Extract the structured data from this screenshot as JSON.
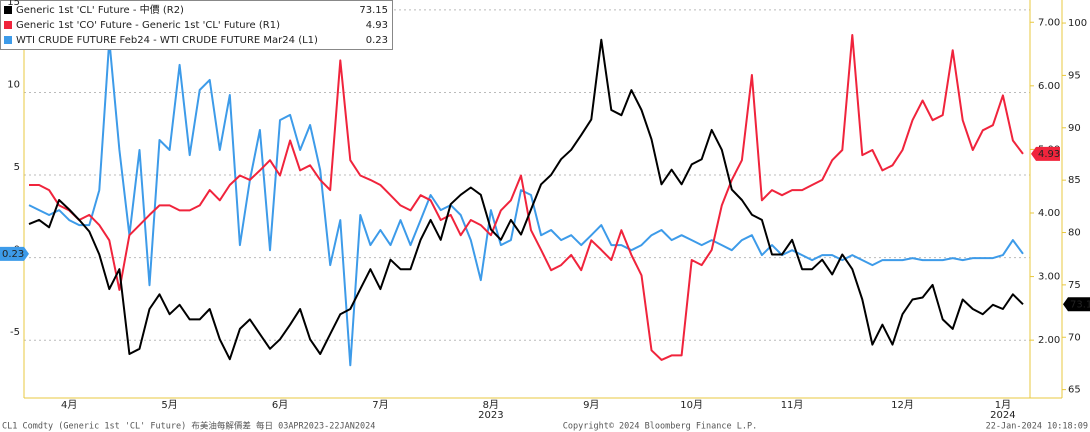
{
  "chart_data": {
    "type": "line",
    "categories": [
      null,
      null,
      null,
      null,
      "4月",
      null,
      null,
      null,
      null,
      null,
      null,
      null,
      null,
      null,
      "5月",
      null,
      null,
      null,
      null,
      null,
      null,
      null,
      null,
      null,
      null,
      "6月",
      null,
      null,
      null,
      null,
      null,
      null,
      null,
      null,
      null,
      "7月",
      null,
      null,
      null,
      null,
      null,
      null,
      null,
      null,
      null,
      null,
      "8月",
      null,
      null,
      null,
      null,
      null,
      null,
      null,
      null,
      null,
      "9月",
      null,
      null,
      null,
      null,
      null,
      null,
      null,
      null,
      null,
      "10月",
      null,
      null,
      null,
      null,
      null,
      null,
      null,
      null,
      null,
      "11月",
      null,
      null,
      null,
      null,
      null,
      null,
      null,
      null,
      null,
      null,
      "12月",
      null,
      null,
      null,
      null,
      null,
      null,
      null,
      null,
      null,
      "1月",
      null,
      null
    ],
    "x_year_labels": [
      {
        "under": "8月",
        "label": "2023"
      },
      {
        "under": "1月",
        "label": "2024"
      }
    ],
    "ylim": [
      -8.5,
      15.6
    ],
    "yticks": [
      -5,
      0,
      5,
      10,
      15
    ],
    "y2lim": [
      1.09,
      7.35
    ],
    "y2ticks": [
      {
        "value": 2,
        "label": "2.00"
      },
      {
        "value": 3,
        "label": "3.00"
      },
      {
        "value": 4,
        "label": "4.00"
      },
      {
        "value": 5,
        "label": "5.00"
      },
      {
        "value": 6,
        "label": "6.00"
      },
      {
        "value": 7,
        "label": "7.00"
      }
    ],
    "y3lim": [
      64.2,
      102.2
    ],
    "y3ticks": [
      65,
      70,
      75,
      80,
      85,
      90,
      95,
      100
    ],
    "grid": true,
    "series": [
      {
        "name": "Generic 1st 'CL' Future - 中價 (R2)",
        "color": "#000000",
        "axis": "y3",
        "values": [
          80.8,
          81.2,
          80.5,
          83.1,
          82.2,
          81.2,
          80.1,
          77.9,
          74.6,
          76.5,
          68.4,
          68.9,
          72.7,
          74.1,
          72.2,
          73.1,
          71.7,
          71.7,
          72.7,
          69.8,
          67.9,
          70.8,
          71.7,
          70.3,
          68.9,
          69.8,
          71.2,
          72.7,
          69.8,
          68.4,
          70.3,
          72.2,
          72.7,
          74.6,
          76.5,
          74.6,
          77.4,
          76.5,
          76.5,
          79.3,
          81.2,
          79.3,
          82.7,
          83.6,
          84.3,
          83.6,
          80.3,
          79.3,
          81.2,
          79.8,
          82.2,
          84.6,
          85.5,
          87.0,
          87.9,
          89.3,
          90.8,
          98.4,
          91.7,
          91.2,
          93.6,
          91.7,
          88.9,
          84.6,
          86.0,
          84.6,
          86.5,
          87.0,
          89.8,
          87.9,
          84.1,
          83.1,
          81.7,
          81.2,
          77.9,
          77.9,
          79.3,
          76.5,
          76.5,
          77.4,
          76.0,
          77.9,
          76.5,
          73.6,
          69.3,
          71.2,
          69.3,
          72.2,
          73.6,
          73.8,
          75.0,
          71.7,
          70.8,
          73.6,
          72.7,
          72.2,
          73.1,
          72.7,
          74.1,
          73.15
        ]
      },
      {
        "name": "Generic 1st 'CO' Future - Generic 1st 'CL' Future (R1)",
        "color": "#f0243c",
        "axis": "y2",
        "values": [
          4.44,
          4.44,
          4.36,
          4.12,
          4.04,
          3.89,
          3.97,
          3.81,
          3.57,
          2.79,
          3.65,
          3.81,
          3.97,
          4.12,
          4.12,
          4.04,
          4.04,
          4.12,
          4.36,
          4.2,
          4.44,
          4.59,
          4.52,
          4.67,
          4.83,
          4.59,
          5.14,
          4.67,
          4.75,
          4.52,
          4.36,
          6.4,
          4.83,
          4.59,
          4.52,
          4.44,
          4.28,
          4.12,
          4.04,
          4.28,
          4.2,
          3.89,
          3.97,
          3.65,
          3.89,
          3.81,
          3.65,
          4.04,
          4.2,
          4.59,
          3.73,
          3.42,
          3.1,
          3.18,
          3.34,
          3.1,
          3.57,
          3.42,
          3.26,
          3.73,
          3.34,
          3.02,
          1.84,
          1.69,
          1.76,
          1.76,
          3.26,
          3.18,
          3.42,
          4.12,
          4.52,
          4.83,
          6.17,
          4.2,
          4.36,
          4.28,
          4.36,
          4.36,
          4.44,
          4.52,
          4.83,
          4.99,
          6.8,
          4.91,
          4.99,
          4.67,
          4.75,
          4.99,
          5.46,
          5.77,
          5.46,
          5.54,
          6.56,
          5.46,
          4.99,
          5.3,
          5.38,
          5.85,
          5.14,
          4.93
        ]
      },
      {
        "name": "WTI CRUDE FUTURE Feb24 - WTI CRUDE FUTURE Mar24 (L1)",
        "color": "#3d9be9",
        "axis": "y",
        "values": [
          3.18,
          2.88,
          2.58,
          2.88,
          2.27,
          1.97,
          1.97,
          4.09,
          13.18,
          6.52,
          1.36,
          6.52,
          -1.67,
          7.12,
          6.52,
          11.67,
          6.21,
          10.15,
          10.76,
          6.52,
          9.85,
          0.76,
          4.7,
          7.73,
          0.45,
          8.33,
          8.64,
          6.52,
          8.03,
          5.3,
          -0.45,
          2.27,
          -6.52,
          2.58,
          0.76,
          1.67,
          0.76,
          2.27,
          0.76,
          2.27,
          3.79,
          2.88,
          3.18,
          2.58,
          1.06,
          -1.36,
          2.88,
          0.76,
          1.06,
          4.09,
          3.79,
          1.36,
          1.67,
          1.06,
          1.36,
          0.76,
          1.36,
          1.97,
          0.76,
          0.76,
          0.45,
          0.76,
          1.36,
          1.67,
          1.06,
          1.36,
          1.06,
          0.76,
          1.06,
          0.76,
          0.45,
          1.06,
          1.36,
          0.15,
          0.76,
          0.15,
          0.45,
          0.15,
          -0.15,
          0.15,
          0.15,
          -0.15,
          0.15,
          -0.15,
          -0.45,
          -0.15,
          -0.15,
          -0.15,
          -0.03,
          -0.15,
          -0.15,
          -0.15,
          -0.03,
          -0.15,
          -0.03,
          -0.03,
          -0.03,
          0.15,
          1.06,
          0.23
        ]
      }
    ]
  },
  "footer": {
    "left": "CL1 Comdty (Generic 1st 'CL' Future) 布美油每解價差  每日 03APR2023-22JAN2024",
    "center": "Copyright© 2024 Bloomberg Finance L.P.",
    "right": "22-Jan-2024 10:18:09"
  }
}
